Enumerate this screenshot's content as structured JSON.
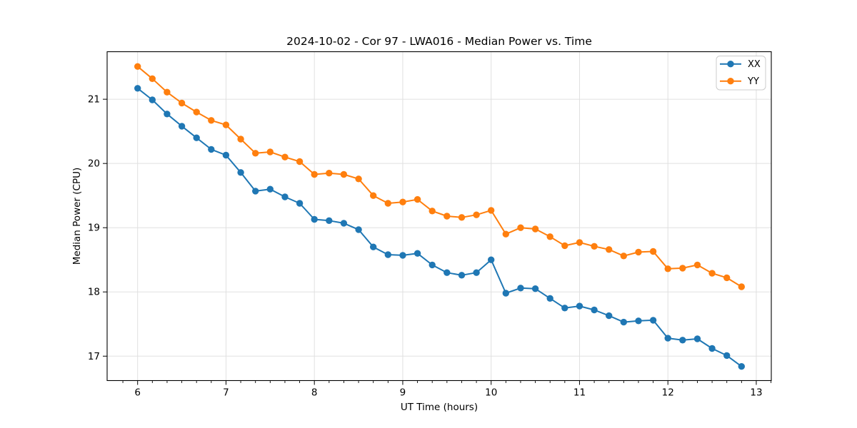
{
  "chart_data": {
    "type": "line",
    "title": "2024-10-02 - Cor 97 - LWA016 - Median Power vs. Time",
    "xlabel": "UT Time (hours)",
    "ylabel": "Median Power (CPU)",
    "xlim": [
      5.655,
      13.17
    ],
    "ylim": [
      16.62,
      21.74
    ],
    "x_ticks": [
      6,
      7,
      8,
      9,
      10,
      11,
      12,
      13
    ],
    "y_ticks": [
      17,
      18,
      19,
      20,
      21
    ],
    "x_minor_tick_step": 0.16667,
    "grid": true,
    "legend_position": "upper right",
    "background_color": "#ffffff",
    "grid_color": "#e0e0e0",
    "x": [
      6.0,
      6.1667,
      6.3333,
      6.5,
      6.6667,
      6.8333,
      7.0,
      7.1667,
      7.3333,
      7.5,
      7.6667,
      7.8333,
      8.0,
      8.1667,
      8.3333,
      8.5,
      8.6667,
      8.8333,
      9.0,
      9.1667,
      9.3333,
      9.5,
      9.6667,
      9.8333,
      10.0,
      10.1667,
      10.3333,
      10.5,
      10.6667,
      10.8333,
      11.0,
      11.1667,
      11.3333,
      11.5,
      11.6667,
      11.8333,
      12.0,
      12.1667,
      12.3333,
      12.5,
      12.6667,
      12.8333
    ],
    "series": [
      {
        "name": "XX",
        "color": "#1f77b4",
        "values": [
          21.17,
          20.99,
          20.77,
          20.58,
          20.4,
          20.22,
          20.13,
          19.86,
          19.57,
          19.6,
          19.48,
          19.38,
          19.13,
          19.11,
          19.07,
          18.97,
          18.7,
          18.58,
          18.57,
          18.6,
          18.42,
          18.3,
          18.26,
          18.3,
          18.5,
          17.98,
          18.06,
          18.05,
          17.9,
          17.75,
          17.78,
          17.72,
          17.63,
          17.53,
          17.55,
          17.56,
          17.28,
          17.25,
          17.27,
          17.12,
          17.01,
          16.84
        ]
      },
      {
        "name": "YY",
        "color": "#ff7f0e",
        "values": [
          21.51,
          21.32,
          21.11,
          20.94,
          20.8,
          20.67,
          20.6,
          20.38,
          20.16,
          20.18,
          20.1,
          20.03,
          19.83,
          19.85,
          19.83,
          19.76,
          19.5,
          19.38,
          19.4,
          19.44,
          19.26,
          19.18,
          19.16,
          19.2,
          19.27,
          18.9,
          19.0,
          18.98,
          18.86,
          18.72,
          18.77,
          18.71,
          18.66,
          18.56,
          18.62,
          18.63,
          18.36,
          18.37,
          18.42,
          18.29,
          18.22,
          18.08
        ]
      }
    ]
  }
}
